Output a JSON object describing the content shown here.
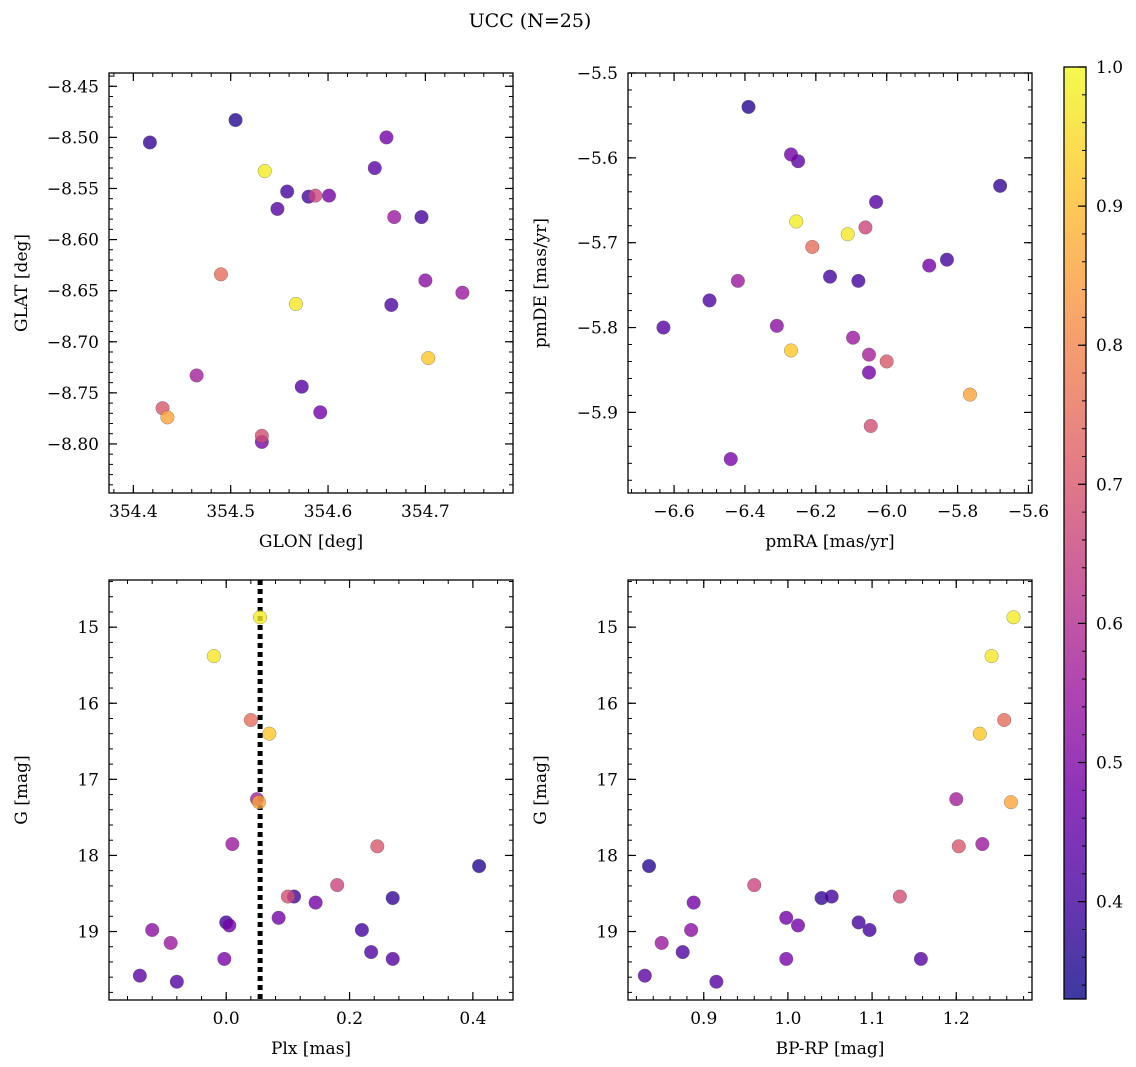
{
  "figure": {
    "title": "UCC (N=25)"
  },
  "colorbar": {
    "vmin": 0.33,
    "vmax": 1.0,
    "ticks": [
      0.4,
      0.5,
      0.6,
      0.7,
      0.8,
      0.9,
      1.0
    ],
    "tick_labels": [
      "0.4",
      "0.5",
      "0.6",
      "0.7",
      "0.8",
      "0.9",
      "1.0"
    ],
    "colormap": "plasma",
    "colormap_stops": [
      "#0d0887",
      "#46039f",
      "#7201a8",
      "#9c179e",
      "#bd3786",
      "#d8576b",
      "#ed7953",
      "#fb9f3a",
      "#fdca26",
      "#f0f921"
    ],
    "marker_alpha": 0.8
  },
  "stars": [
    {
      "glon": 354.505,
      "glat": -8.483,
      "pmra": -6.39,
      "pmde": -5.54,
      "plx": 0.41,
      "g": 18.14,
      "bprp": 0.835,
      "p": 0.36
    },
    {
      "glon": 354.417,
      "glat": -8.505,
      "pmra": -5.68,
      "pmde": -5.633,
      "plx": 0.27,
      "g": 18.56,
      "bprp": 1.04,
      "p": 0.38
    },
    {
      "glon": 354.66,
      "glat": -8.5,
      "pmra": -6.27,
      "pmde": -5.596,
      "plx": 0.005,
      "g": 18.92,
      "bprp": 1.012,
      "p": 0.48
    },
    {
      "glon": 354.535,
      "glat": -8.533,
      "pmra": -6.255,
      "pmde": -5.675,
      "plx": 0.055,
      "g": 14.87,
      "bprp": 1.268,
      "p": 0.98
    },
    {
      "glon": 354.648,
      "glat": -8.53,
      "pmra": -6.25,
      "pmde": -5.604,
      "plx": -0.14,
      "g": 19.58,
      "bprp": 0.83,
      "p": 0.44
    },
    {
      "glon": 354.558,
      "glat": -8.553,
      "pmra": -6.08,
      "pmde": -5.745,
      "plx": 0.11,
      "g": 18.54,
      "bprp": 1.052,
      "p": 0.4
    },
    {
      "glon": 354.58,
      "glat": -8.558,
      "pmra": -5.83,
      "pmde": -5.72,
      "plx": 0.22,
      "g": 18.98,
      "bprp": 1.097,
      "p": 0.4
    },
    {
      "glon": 354.587,
      "glat": -8.557,
      "pmra": -6.06,
      "pmde": -5.682,
      "plx": 0.18,
      "g": 18.39,
      "bprp": 0.96,
      "p": 0.66
    },
    {
      "glon": 354.601,
      "glat": -8.557,
      "pmra": -5.88,
      "pmde": -5.727,
      "plx": 0.085,
      "g": 18.82,
      "bprp": 0.998,
      "p": 0.48
    },
    {
      "glon": 354.548,
      "glat": -8.57,
      "pmra": -6.03,
      "pmde": -5.652,
      "plx": -0.08,
      "g": 19.66,
      "bprp": 0.915,
      "p": 0.43
    },
    {
      "glon": 354.668,
      "glat": -8.578,
      "pmra": -6.42,
      "pmde": -5.745,
      "plx": 0.01,
      "g": 17.85,
      "bprp": 1.231,
      "p": 0.55
    },
    {
      "glon": 354.696,
      "glat": -8.578,
      "pmra": -6.16,
      "pmde": -5.74,
      "plx": 0.0,
      "g": 18.88,
      "bprp": 1.084,
      "p": 0.4
    },
    {
      "glon": 354.49,
      "glat": -8.634,
      "pmra": -6.21,
      "pmde": -5.705,
      "plx": 0.04,
      "g": 16.22,
      "bprp": 1.257,
      "p": 0.75
    },
    {
      "glon": 354.567,
      "glat": -8.663,
      "pmra": -6.11,
      "pmde": -5.69,
      "plx": -0.02,
      "g": 15.38,
      "bprp": 1.242,
      "p": 0.97
    },
    {
      "glon": 354.665,
      "glat": -8.664,
      "pmra": -6.5,
      "pmde": -5.768,
      "plx": 0.235,
      "g": 19.27,
      "bprp": 0.875,
      "p": 0.42
    },
    {
      "glon": 354.7,
      "glat": -8.64,
      "pmra": -6.31,
      "pmde": -5.798,
      "plx": -0.12,
      "g": 18.98,
      "bprp": 0.885,
      "p": 0.52
    },
    {
      "glon": 354.738,
      "glat": -8.652,
      "pmra": -6.095,
      "pmde": -5.812,
      "plx": -0.09,
      "g": 19.15,
      "bprp": 0.85,
      "p": 0.55
    },
    {
      "glon": 354.703,
      "glat": -8.716,
      "pmra": -6.27,
      "pmde": -5.827,
      "plx": 0.07,
      "g": 16.4,
      "bprp": 1.228,
      "p": 0.92
    },
    {
      "glon": 354.465,
      "glat": -8.733,
      "pmra": -6.05,
      "pmde": -5.832,
      "plx": 0.05,
      "g": 17.26,
      "bprp": 1.2,
      "p": 0.57
    },
    {
      "glon": 354.573,
      "glat": -8.744,
      "pmra": -6.63,
      "pmde": -5.8,
      "plx": 0.27,
      "g": 19.36,
      "bprp": 1.158,
      "p": 0.43
    },
    {
      "glon": 354.43,
      "glat": -8.765,
      "pmra": -6.0,
      "pmde": -5.84,
      "plx": 0.245,
      "g": 17.88,
      "bprp": 1.203,
      "p": 0.7
    },
    {
      "glon": 354.435,
      "glat": -8.774,
      "pmra": -5.765,
      "pmde": -5.879,
      "plx": 0.053,
      "g": 17.3,
      "bprp": 1.265,
      "p": 0.86
    },
    {
      "glon": 354.592,
      "glat": -8.769,
      "pmra": -6.05,
      "pmde": -5.853,
      "plx": 0.145,
      "g": 18.62,
      "bprp": 0.888,
      "p": 0.48
    },
    {
      "glon": 354.532,
      "glat": -8.792,
      "pmra": -6.045,
      "pmde": -5.916,
      "plx": 0.1,
      "g": 18.54,
      "bprp": 1.133,
      "p": 0.68
    },
    {
      "glon": 354.532,
      "glat": -8.798,
      "pmra": -6.44,
      "pmde": -5.955,
      "plx": -0.003,
      "g": 19.36,
      "bprp": 0.998,
      "p": 0.49
    }
  ],
  "panels": [
    {
      "id": "tl",
      "x": "glon",
      "y": "glat",
      "xlabel": "GLON [deg]",
      "ylabel": "GLAT [deg]",
      "xlim": [
        354.375,
        354.79
      ],
      "ylim": [
        -8.848,
        -8.437
      ],
      "yinvert": false,
      "xticks": [
        354.4,
        354.5,
        354.6,
        354.7
      ],
      "xtick_labels": [
        "354.4",
        "354.5",
        "354.6",
        "354.7"
      ],
      "xminor": 0.02,
      "yticks": [
        -8.45,
        -8.5,
        -8.55,
        -8.6,
        -8.65,
        -8.7,
        -8.75,
        -8.8
      ],
      "ytick_labels": [
        "−8.45",
        "−8.50",
        "−8.55",
        "−8.60",
        "−8.65",
        "−8.70",
        "−8.75",
        "−8.80"
      ],
      "yminor": 0.01
    },
    {
      "id": "tr",
      "x": "pmra",
      "y": "pmde",
      "xlabel": "pmRA [mas/yr]",
      "ylabel": "pmDE [mas/yr]",
      "xlim": [
        -6.73,
        -5.59
      ],
      "ylim": [
        -5.995,
        -5.5
      ],
      "yinvert": false,
      "xticks": [
        -6.6,
        -6.4,
        -6.2,
        -6.0,
        -5.8,
        -5.6
      ],
      "xtick_labels": [
        "−6.6",
        "−6.4",
        "−6.2",
        "−6.0",
        "−5.8",
        "−5.6"
      ],
      "xminor": 0.04,
      "yticks": [
        -5.5,
        -5.6,
        -5.7,
        -5.8,
        -5.9
      ],
      "ytick_labels": [
        "−5.5",
        "−5.6",
        "−5.7",
        "−5.8",
        "−5.9"
      ],
      "yminor": 0.02
    },
    {
      "id": "bl",
      "x": "plx",
      "y": "g",
      "xlabel": "Plx [mas]",
      "ylabel": "G [mag]",
      "xlim": [
        -0.19,
        0.465
      ],
      "ylim": [
        14.38,
        19.9
      ],
      "yinvert": true,
      "xticks": [
        0.0,
        0.2,
        0.4
      ],
      "xtick_labels": [
        "0.0",
        "0.2",
        "0.4"
      ],
      "xminor": 0.04,
      "yticks": [
        15,
        16,
        17,
        18,
        19
      ],
      "ytick_labels": [
        "15",
        "16",
        "17",
        "18",
        "19"
      ],
      "yminor": 0.2,
      "vline": 0.055
    },
    {
      "id": "br",
      "x": "bprp",
      "y": "g",
      "xlabel": "BP-RP [mag]",
      "ylabel": "G [mag]",
      "xlim": [
        0.81,
        1.29
      ],
      "ylim": [
        14.38,
        19.9
      ],
      "yinvert": true,
      "xticks": [
        0.9,
        1.0,
        1.1,
        1.2
      ],
      "xtick_labels": [
        "0.9",
        "1.0",
        "1.1",
        "1.2"
      ],
      "xminor": 0.02,
      "yticks": [
        15,
        16,
        17,
        18,
        19
      ],
      "ytick_labels": [
        "15",
        "16",
        "17",
        "18",
        "19"
      ],
      "yminor": 0.2
    }
  ],
  "chart_data": [
    {
      "type": "scatter",
      "title": "UCC (N=25)",
      "xlabel": "GLON [deg]",
      "ylabel": "GLAT [deg]",
      "xlim": [
        354.375,
        354.79
      ],
      "ylim": [
        -8.848,
        -8.437
      ],
      "x_field": "glon",
      "y_field": "glat",
      "color_field": "p"
    },
    {
      "type": "scatter",
      "xlabel": "pmRA [mas/yr]",
      "ylabel": "pmDE [mas/yr]",
      "xlim": [
        -6.73,
        -5.59
      ],
      "ylim": [
        -5.995,
        -5.5
      ],
      "x_field": "pmra",
      "y_field": "pmde",
      "color_field": "p"
    },
    {
      "type": "scatter",
      "xlabel": "Plx [mas]",
      "ylabel": "G [mag]",
      "xlim": [
        -0.19,
        0.465
      ],
      "ylim": [
        19.9,
        14.38
      ],
      "x_field": "plx",
      "y_field": "g",
      "color_field": "p",
      "vline": 0.055
    },
    {
      "type": "scatter",
      "xlabel": "BP-RP [mag]",
      "ylabel": "G [mag]",
      "xlim": [
        0.81,
        1.29
      ],
      "ylim": [
        19.9,
        14.38
      ],
      "x_field": "bprp",
      "y_field": "g",
      "color_field": "p"
    }
  ]
}
